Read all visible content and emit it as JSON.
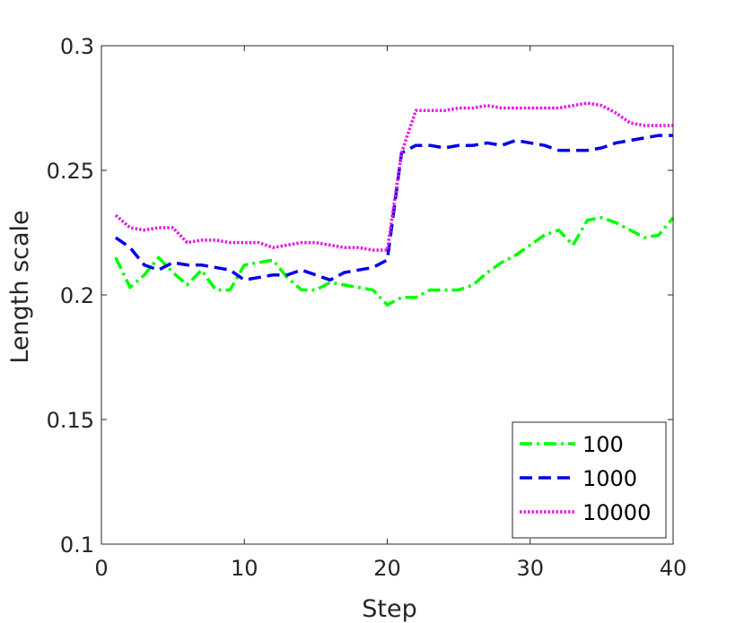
{
  "chart_data": {
    "type": "line",
    "title": "",
    "xlabel": "Step",
    "ylabel": "Length scale",
    "xlim": [
      0,
      40
    ],
    "ylim": [
      0.1,
      0.3
    ],
    "xticks": [
      0,
      10,
      20,
      30,
      40
    ],
    "xtick_labels": [
      "0",
      "10",
      "20",
      "30",
      "40"
    ],
    "yticks": [
      0.1,
      0.15,
      0.2,
      0.25,
      0.3
    ],
    "ytick_labels": [
      "0.1",
      "0.15",
      "0.2",
      "0.25",
      "0.3"
    ],
    "grid": false,
    "legend": {
      "position": "bottom-right"
    },
    "x": [
      1,
      2,
      3,
      4,
      5,
      6,
      7,
      8,
      9,
      10,
      11,
      12,
      13,
      14,
      15,
      16,
      17,
      18,
      19,
      20,
      21,
      22,
      23,
      24,
      25,
      26,
      27,
      28,
      29,
      30,
      31,
      32,
      33,
      34,
      35,
      36,
      37,
      38,
      39,
      40
    ],
    "series": [
      {
        "name": "100",
        "color": "#00ff00",
        "dash": "dash-dot",
        "values": [
          0.215,
          0.203,
          0.208,
          0.215,
          0.209,
          0.204,
          0.21,
          0.202,
          0.202,
          0.212,
          0.213,
          0.214,
          0.207,
          0.202,
          0.202,
          0.205,
          0.204,
          0.203,
          0.202,
          0.196,
          0.199,
          0.199,
          0.202,
          0.202,
          0.202,
          0.204,
          0.209,
          0.213,
          0.216,
          0.22,
          0.224,
          0.226,
          0.22,
          0.23,
          0.231,
          0.229,
          0.226,
          0.223,
          0.224,
          0.231
        ]
      },
      {
        "name": "1000",
        "color": "#0000e6",
        "dash": "dashed",
        "values": [
          0.223,
          0.219,
          0.212,
          0.21,
          0.213,
          0.212,
          0.212,
          0.211,
          0.21,
          0.206,
          0.207,
          0.208,
          0.208,
          0.21,
          0.208,
          0.206,
          0.209,
          0.21,
          0.211,
          0.214,
          0.257,
          0.26,
          0.26,
          0.259,
          0.26,
          0.26,
          0.261,
          0.26,
          0.262,
          0.261,
          0.26,
          0.258,
          0.258,
          0.258,
          0.259,
          0.261,
          0.262,
          0.263,
          0.264,
          0.264
        ]
      },
      {
        "name": "10000",
        "color": "#e619e6",
        "dash": "dotted",
        "values": [
          0.232,
          0.227,
          0.226,
          0.227,
          0.227,
          0.221,
          0.222,
          0.222,
          0.221,
          0.221,
          0.221,
          0.219,
          0.22,
          0.221,
          0.221,
          0.22,
          0.219,
          0.219,
          0.218,
          0.218,
          0.257,
          0.274,
          0.274,
          0.274,
          0.275,
          0.275,
          0.276,
          0.275,
          0.275,
          0.275,
          0.275,
          0.275,
          0.276,
          0.277,
          0.276,
          0.273,
          0.269,
          0.268,
          0.268,
          0.268
        ]
      }
    ]
  }
}
